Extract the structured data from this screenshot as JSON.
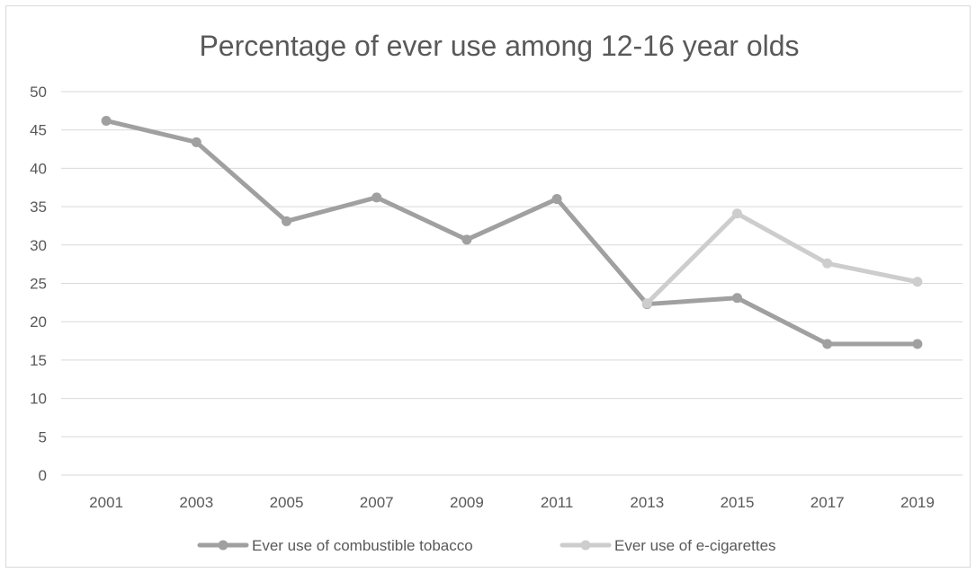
{
  "chart_data": {
    "type": "line",
    "title": "Percentage of ever use among 12-16 year olds",
    "xlabel": "",
    "ylabel": "",
    "categories": [
      "2001",
      "2003",
      "2005",
      "2007",
      "2009",
      "2011",
      "2013",
      "2015",
      "2017",
      "2019"
    ],
    "ylim": [
      0,
      50
    ],
    "yticks": [
      "0",
      "5",
      "10",
      "15",
      "20",
      "25",
      "30",
      "35",
      "40",
      "45",
      "50"
    ],
    "grid": true,
    "legend_position": "bottom",
    "series": [
      {
        "name": "Ever use of combustible tobacco",
        "color": "#a0a0a0",
        "values": [
          46.2,
          43.4,
          33.1,
          36.2,
          30.7,
          36.0,
          22.3,
          23.1,
          17.1,
          17.1
        ]
      },
      {
        "name": "Ever use of e-cigarettes",
        "color": "#cdcdcd",
        "values": [
          null,
          null,
          null,
          null,
          null,
          null,
          22.4,
          34.1,
          27.6,
          25.2
        ]
      }
    ]
  }
}
